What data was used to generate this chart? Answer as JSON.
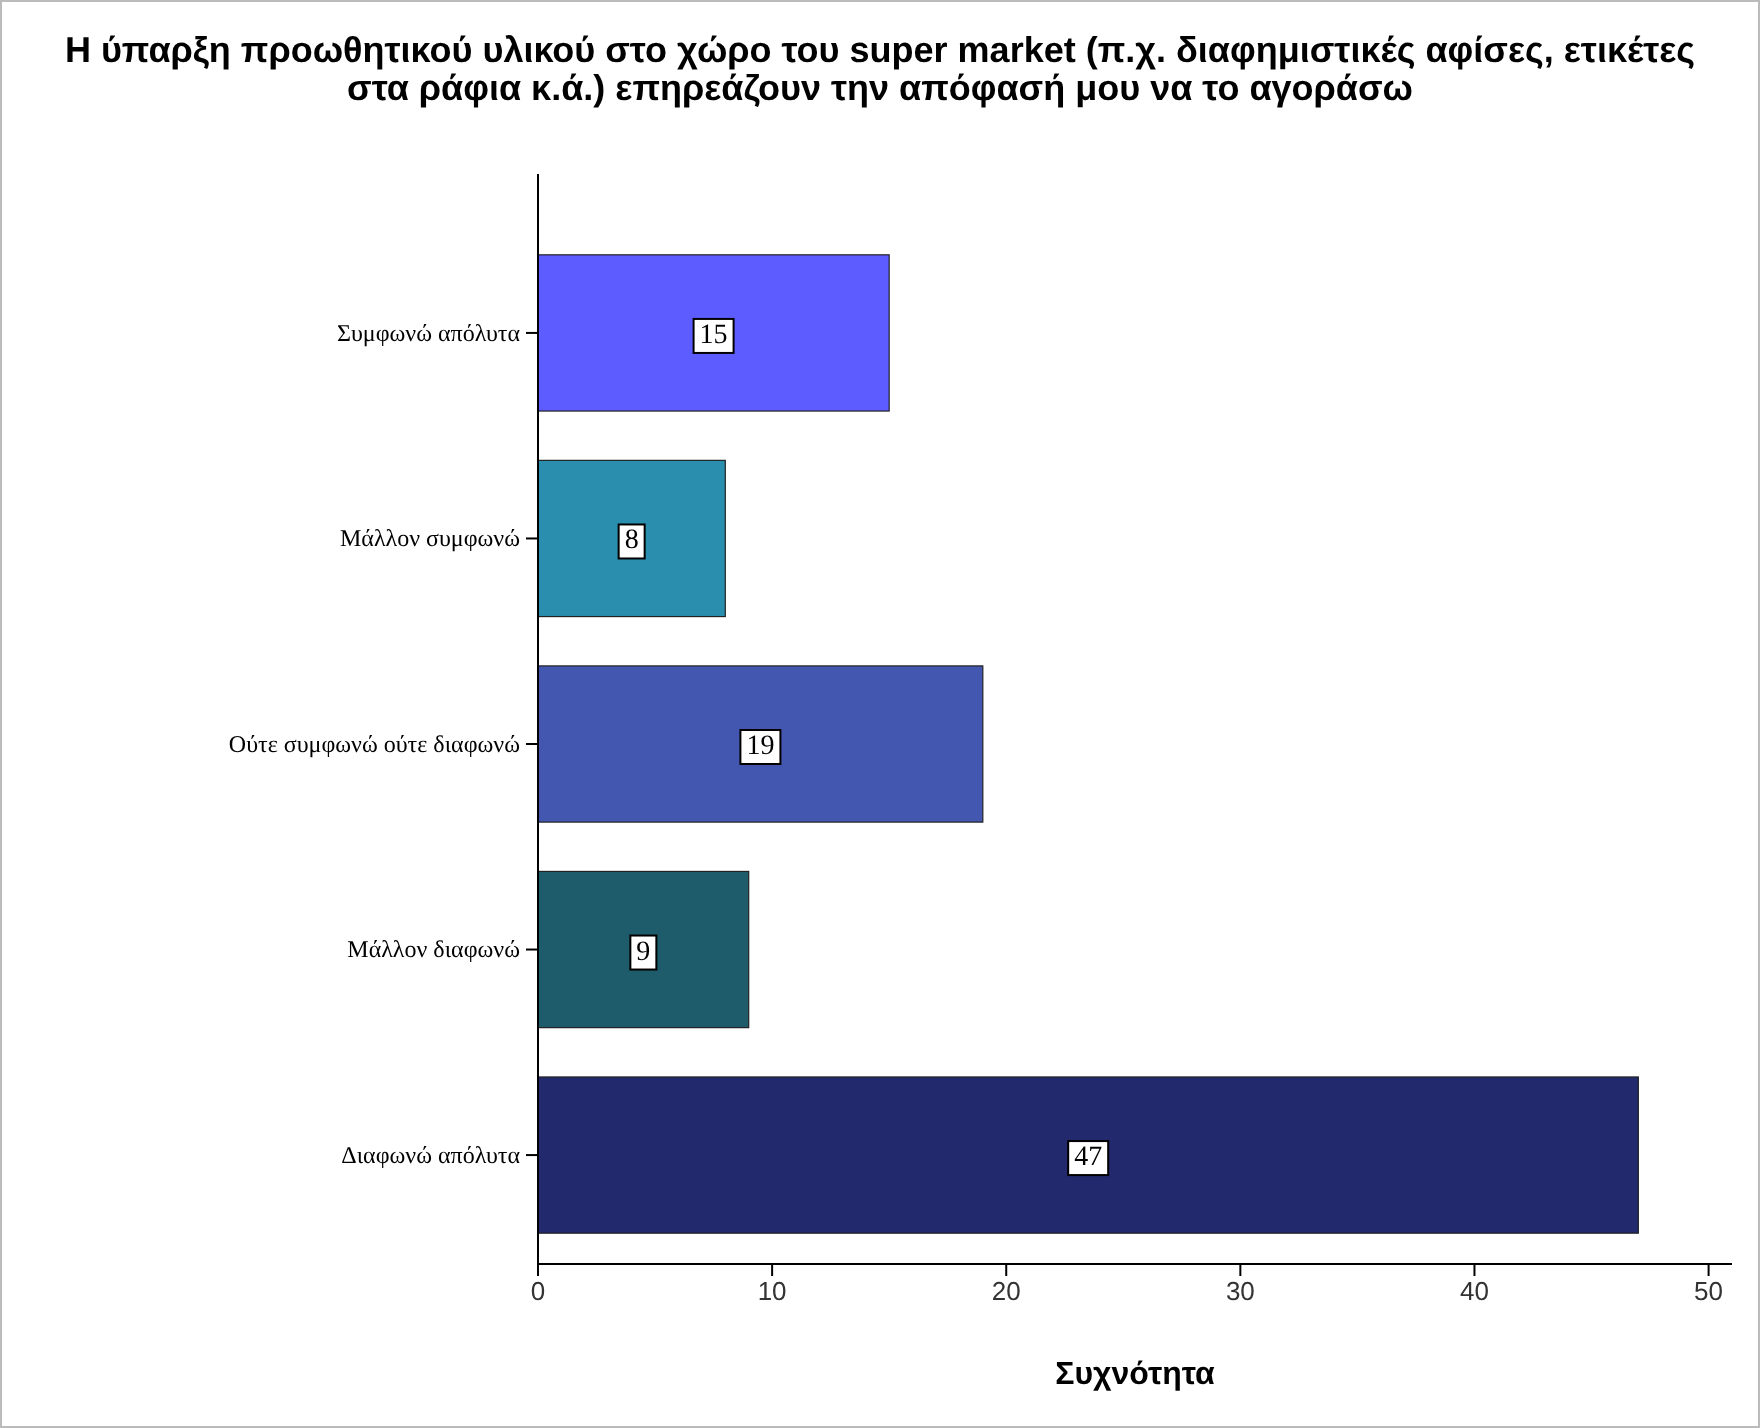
{
  "chart_data": {
    "type": "bar",
    "orientation": "horizontal",
    "title": "Η ύπαρξη προωθητικού υλικού στο χώρο του super market (π.χ. διαφημιστικές αφίσες, ετικέτες στα ράφια κ.ά.) επηρεάζουν την απόφασή μου να το αγοράσω",
    "xlabel": "Συχνότητα",
    "categories": [
      "Συμφωνώ απόλυτα",
      "Μάλλον συμφωνώ",
      "Ούτε συμφωνώ ούτε διαφωνώ",
      "Μάλλον διαφωνώ",
      "Διαφωνώ απόλυτα"
    ],
    "values": [
      15,
      8,
      19,
      9,
      47
    ],
    "colors": [
      "#5d5dff",
      "#2a8eae",
      "#4457b0",
      "#1e5c6c",
      "#22296c"
    ],
    "xlim": [
      0,
      51
    ],
    "xticks": [
      0,
      10,
      20,
      30,
      40,
      50
    ],
    "grid": false,
    "data_labels": true
  }
}
